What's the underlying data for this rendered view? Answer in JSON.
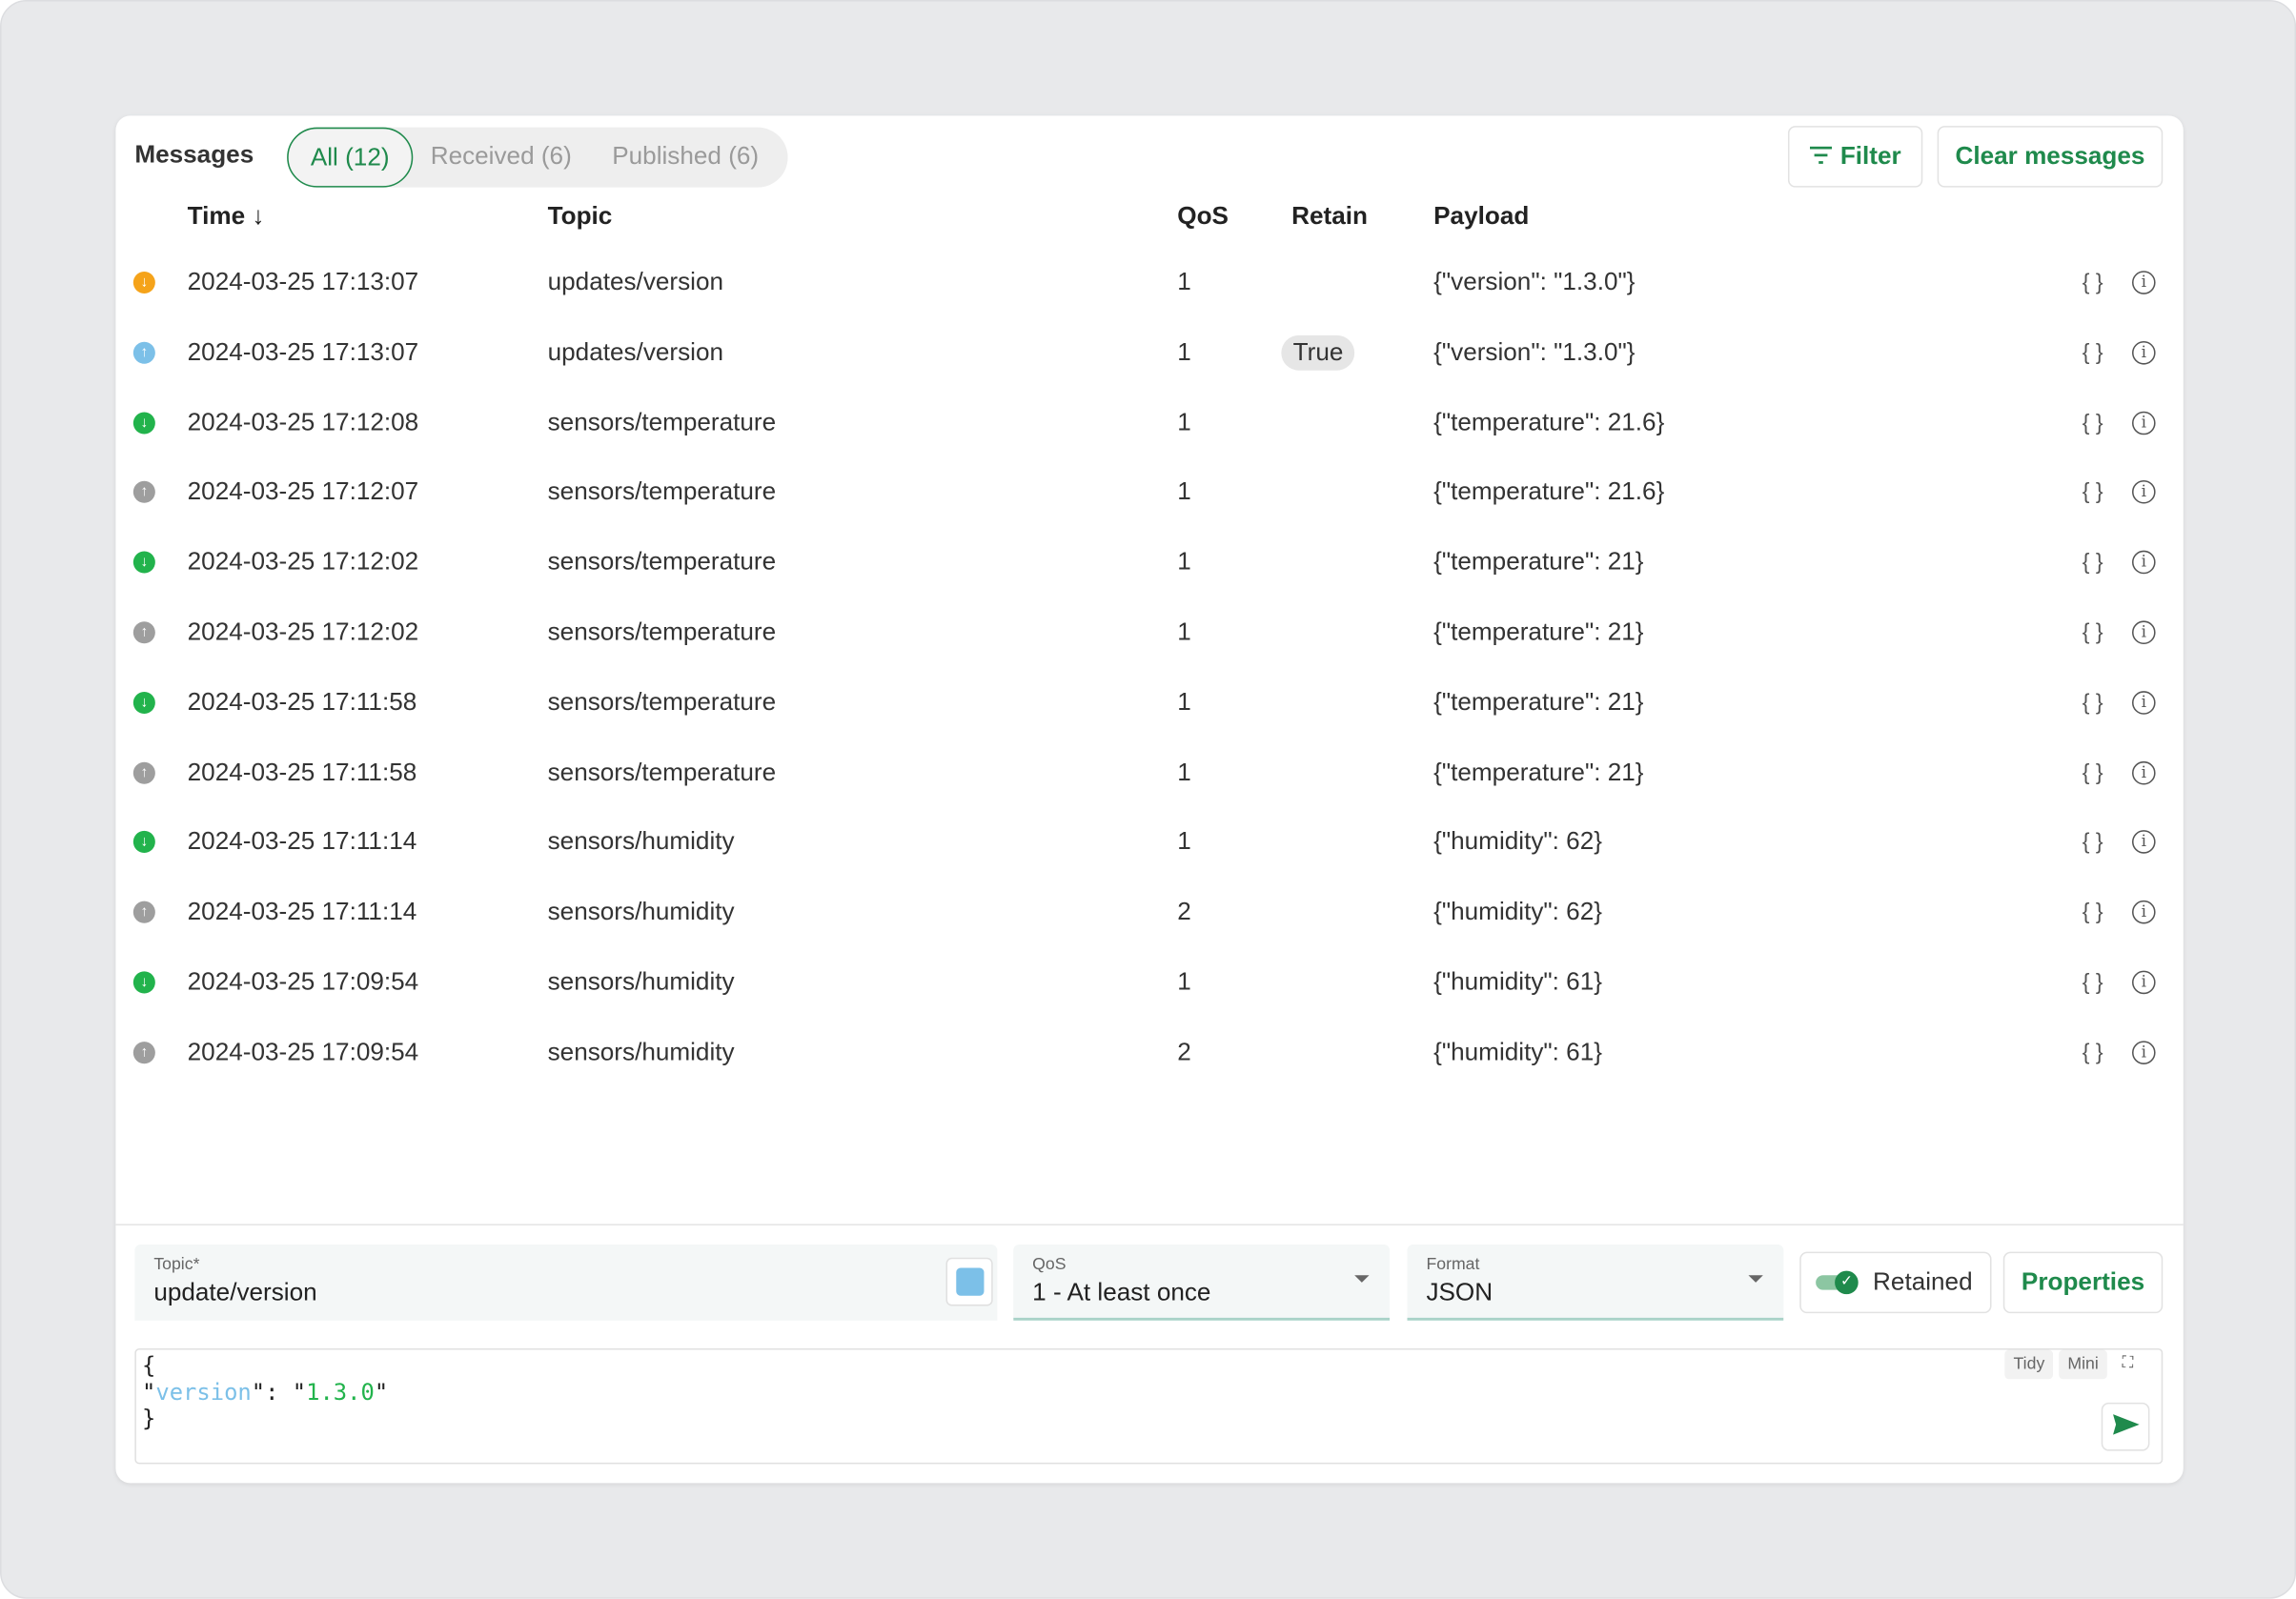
{
  "header": {
    "title": "Messages",
    "tabs": [
      {
        "label": "All (12)",
        "active": true
      },
      {
        "label": "Received (6)"
      },
      {
        "label": "Published (6)"
      }
    ],
    "filter_label": "Filter",
    "clear_label": "Clear messages"
  },
  "columns": {
    "time": "Time ↓",
    "topic": "Topic",
    "qos": "QoS",
    "retain": "Retain",
    "payload": "Payload"
  },
  "colors": {
    "accent": "#1f8a4c",
    "received": "#22b34c",
    "published": "#9e9e9e",
    "retained_received": "#f5a31a",
    "retained_published": "#7cc0e8"
  },
  "rows": [
    {
      "dir": "received",
      "color": "#f5a31a",
      "time": "2024-03-25  17:13:07",
      "topic": "updates/version",
      "qos": "1",
      "retain": "",
      "payload": "{\"version\": \"1.3.0\"}"
    },
    {
      "dir": "published",
      "color": "#7cc0e8",
      "time": "2024-03-25  17:13:07",
      "topic": "updates/version",
      "qos": "1",
      "retain": "True",
      "payload": "{\"version\": \"1.3.0\"}"
    },
    {
      "dir": "received",
      "color": "#22b34c",
      "time": "2024-03-25  17:12:08",
      "topic": "sensors/temperature",
      "qos": "1",
      "retain": "",
      "payload": "{\"temperature\": 21.6}"
    },
    {
      "dir": "published",
      "color": "#9e9e9e",
      "time": "2024-03-25  17:12:07",
      "topic": "sensors/temperature",
      "qos": "1",
      "retain": "",
      "payload": "{\"temperature\": 21.6}"
    },
    {
      "dir": "received",
      "color": "#22b34c",
      "time": "2024-03-25  17:12:02",
      "topic": "sensors/temperature",
      "qos": "1",
      "retain": "",
      "payload": "{\"temperature\": 21}"
    },
    {
      "dir": "published",
      "color": "#9e9e9e",
      "time": "2024-03-25  17:12:02",
      "topic": "sensors/temperature",
      "qos": "1",
      "retain": "",
      "payload": "{\"temperature\": 21}"
    },
    {
      "dir": "received",
      "color": "#22b34c",
      "time": "2024-03-25  17:11:58",
      "topic": "sensors/temperature",
      "qos": "1",
      "retain": "",
      "payload": "{\"temperature\": 21}"
    },
    {
      "dir": "published",
      "color": "#9e9e9e",
      "time": "2024-03-25  17:11:58",
      "topic": "sensors/temperature",
      "qos": "1",
      "retain": "",
      "payload": "{\"temperature\": 21}"
    },
    {
      "dir": "received",
      "color": "#22b34c",
      "time": "2024-03-25  17:11:14",
      "topic": "sensors/humidity",
      "qos": "1",
      "retain": "",
      "payload": "{\"humidity\": 62}"
    },
    {
      "dir": "published",
      "color": "#9e9e9e",
      "time": "2024-03-25  17:11:14",
      "topic": "sensors/humidity",
      "qos": "2",
      "retain": "",
      "payload": "{\"humidity\": 62}"
    },
    {
      "dir": "received",
      "color": "#22b34c",
      "time": "2024-03-25  17:09:54",
      "topic": "sensors/humidity",
      "qos": "1",
      "retain": "",
      "payload": "{\"humidity\": 61}"
    },
    {
      "dir": "published",
      "color": "#9e9e9e",
      "time": "2024-03-25  17:09:54",
      "topic": "sensors/humidity",
      "qos": "2",
      "retain": "",
      "payload": "{\"humidity\": 61}"
    }
  ],
  "publish": {
    "topic_label": "Topic*",
    "topic_value": "update/version",
    "topic_color": "#7cc0e8",
    "qos_label": "QoS",
    "qos_value": "1 - At least once",
    "format_label": "Format",
    "format_value": "JSON",
    "retained_label": "Retained",
    "retained_on": true,
    "properties_label": "Properties",
    "tidy_label": "Tidy",
    "mini_label": "Mini",
    "editor": {
      "open": "{",
      "key": "version",
      "value": "1.3.0",
      "close": "}"
    }
  }
}
